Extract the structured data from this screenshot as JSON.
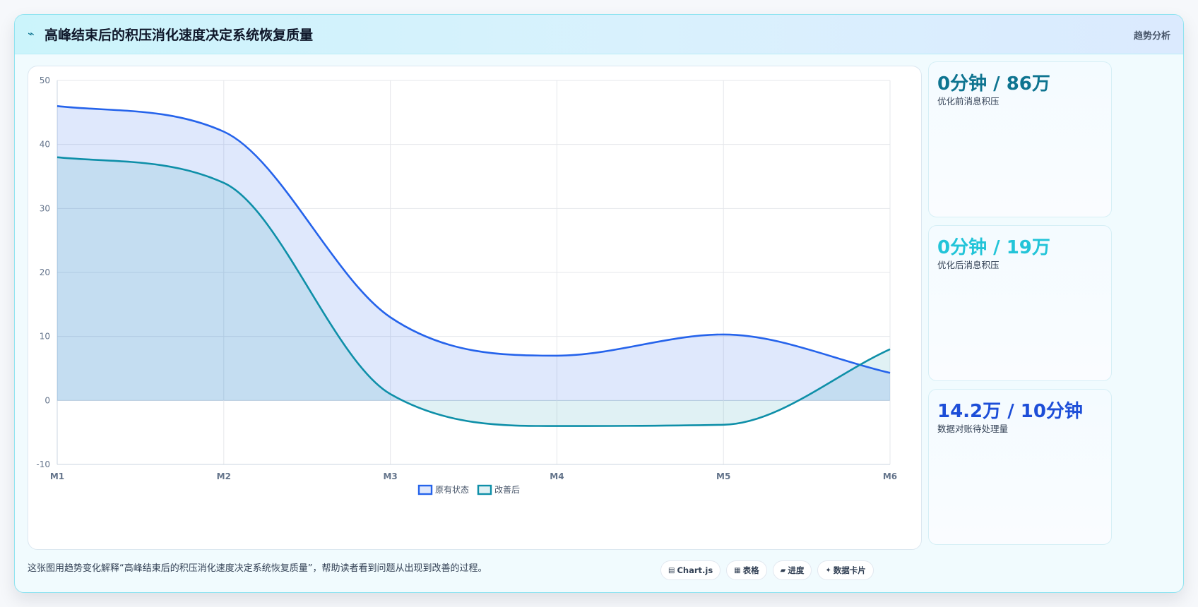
{
  "header": {
    "icon": "lightning-icon",
    "title": "高峰结束后的积压消化速度决定系统恢复质量",
    "badge": "趋势分析"
  },
  "stats": [
    {
      "value": "0分钟 / 86万",
      "label": "优化前消息积压",
      "color": "#0e7490"
    },
    {
      "value": "0分钟 / 19万",
      "label": "优化后消息积压",
      "color": "#22c4d8"
    },
    {
      "value": "14.2万 / 10分钟",
      "label": "数据对账待处理量",
      "color": "#1d4ed8"
    }
  ],
  "footer": {
    "note": "这张图用趋势变化解释“高峰结束后的积压消化速度决定系统恢复质量”，帮助读者看到问题从出现到改善的过程。",
    "tags": [
      {
        "icon": "chart-icon",
        "glyph": "▤",
        "label": "Chart.js"
      },
      {
        "icon": "table-icon",
        "glyph": "▦",
        "label": "表格"
      },
      {
        "icon": "progress-icon",
        "glyph": "▰",
        "label": "进度"
      },
      {
        "icon": "sparkle-icon",
        "glyph": "✦",
        "label": "数据卡片"
      }
    ]
  },
  "chart_data": {
    "type": "area",
    "categories": [
      "M1",
      "M2",
      "M3",
      "M4",
      "M5",
      "M6"
    ],
    "series": [
      {
        "name": "原有状态",
        "values": [
          46,
          42,
          13,
          7,
          10.3,
          4.3
        ],
        "color": "#2563eb",
        "fill": "rgba(37,99,235,0.15)"
      },
      {
        "name": "改善后",
        "values": [
          38,
          34,
          1,
          -4,
          -3.8,
          8
        ],
        "color": "#0e8fa8",
        "fill": "rgba(14,143,168,0.13)"
      }
    ],
    "ylim": [
      -10,
      50
    ],
    "yticks": [
      -10,
      0,
      10,
      20,
      30,
      40,
      50
    ],
    "grid": true,
    "legend_position": "bottom"
  }
}
